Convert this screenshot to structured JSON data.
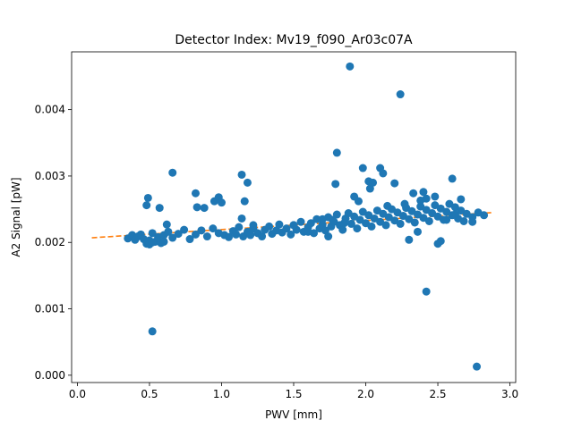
{
  "chart_data": {
    "type": "scatter",
    "title": "Detector Index: Mv19_f090_Ar03c07A",
    "xlabel": "PWV [mm]",
    "ylabel": "A2 Signal [pW]",
    "xlim": [
      -0.04,
      3.04
    ],
    "ylim": [
      -0.00011,
      0.00487
    ],
    "xticks": [
      0.0,
      0.5,
      1.0,
      1.5,
      2.0,
      2.5,
      3.0
    ],
    "xtick_labels": [
      "0.0",
      "0.5",
      "1.0",
      "1.5",
      "2.0",
      "2.5",
      "3.0"
    ],
    "yticks": [
      0.0,
      0.001,
      0.002,
      0.003,
      0.004
    ],
    "ytick_labels": [
      "0.000",
      "0.001",
      "0.002",
      "0.003",
      "0.004"
    ],
    "grid": false,
    "series": [
      {
        "name": "data",
        "kind": "scatter",
        "color": "#1f77b4",
        "points": [
          [
            0.35,
            0.00206
          ],
          [
            0.38,
            0.00211
          ],
          [
            0.4,
            0.00204
          ],
          [
            0.42,
            0.00209
          ],
          [
            0.44,
            0.00212
          ],
          [
            0.46,
            0.00205
          ],
          [
            0.48,
            0.00198
          ],
          [
            0.5,
            0.00203
          ],
          [
            0.52,
            0.00214
          ],
          [
            0.54,
            0.00201
          ],
          [
            0.56,
            0.00208
          ],
          [
            0.58,
            0.00199
          ],
          [
            0.6,
            0.00211
          ],
          [
            0.63,
            0.00216
          ],
          [
            0.66,
            0.00207
          ],
          [
            0.7,
            0.00213
          ],
          [
            0.74,
            0.00219
          ],
          [
            0.78,
            0.00205
          ],
          [
            0.82,
            0.00212
          ],
          [
            0.86,
            0.00218
          ],
          [
            0.9,
            0.00209
          ],
          [
            0.94,
            0.00221
          ],
          [
            0.98,
            0.00214
          ],
          [
            1.02,
            0.00211
          ],
          [
            1.05,
            0.00208
          ],
          [
            1.08,
            0.00217
          ],
          [
            1.1,
            0.00212
          ],
          [
            1.12,
            0.00223
          ],
          [
            1.15,
            0.00209
          ],
          [
            1.18,
            0.00216
          ],
          [
            1.2,
            0.00211
          ],
          [
            1.22,
            0.00221
          ],
          [
            1.25,
            0.00214
          ],
          [
            1.28,
            0.00209
          ],
          [
            1.3,
            0.00219
          ],
          [
            1.33,
            0.00224
          ],
          [
            1.35,
            0.00213
          ],
          [
            1.38,
            0.00218
          ],
          [
            1.4,
            0.00227
          ],
          [
            1.42,
            0.00215
          ],
          [
            1.45,
            0.00221
          ],
          [
            1.48,
            0.00212
          ],
          [
            1.5,
            0.00226
          ],
          [
            1.52,
            0.00219
          ],
          [
            1.55,
            0.00231
          ],
          [
            1.57,
            0.00216
          ],
          [
            1.6,
            0.00223
          ],
          [
            1.62,
            0.00229
          ],
          [
            1.64,
            0.00214
          ],
          [
            1.66,
            0.00235
          ],
          [
            1.68,
            0.00221
          ],
          [
            1.7,
            0.00227
          ],
          [
            1.72,
            0.00218
          ],
          [
            1.74,
            0.00238
          ],
          [
            1.76,
            0.00224
          ],
          [
            1.78,
            0.00231
          ],
          [
            1.8,
            0.00242
          ],
          [
            1.82,
            0.00226
          ],
          [
            1.84,
            0.00219
          ],
          [
            1.86,
            0.00236
          ],
          [
            1.88,
            0.00244
          ],
          [
            1.9,
            0.00228
          ],
          [
            1.92,
            0.00239
          ],
          [
            1.94,
            0.00221
          ],
          [
            1.96,
            0.00234
          ],
          [
            1.98,
            0.00246
          ],
          [
            2.0,
            0.00229
          ],
          [
            2.02,
            0.00241
          ],
          [
            2.04,
            0.00224
          ],
          [
            2.06,
            0.00236
          ],
          [
            2.08,
            0.00248
          ],
          [
            2.1,
            0.00231
          ],
          [
            2.12,
            0.00243
          ],
          [
            2.14,
            0.00226
          ],
          [
            2.16,
            0.00238
          ],
          [
            2.18,
            0.0025
          ],
          [
            2.2,
            0.00233
          ],
          [
            2.22,
            0.00245
          ],
          [
            2.24,
            0.00228
          ],
          [
            2.26,
            0.0024
          ],
          [
            2.28,
            0.00252
          ],
          [
            2.3,
            0.00235
          ],
          [
            2.32,
            0.00247
          ],
          [
            2.34,
            0.0023
          ],
          [
            2.36,
            0.00242
          ],
          [
            2.38,
            0.00254
          ],
          [
            2.4,
            0.00237
          ],
          [
            2.42,
            0.00249
          ],
          [
            2.44,
            0.00232
          ],
          [
            2.46,
            0.00244
          ],
          [
            2.48,
            0.00256
          ],
          [
            2.5,
            0.00239
          ],
          [
            2.52,
            0.00251
          ],
          [
            2.54,
            0.00234
          ],
          [
            2.56,
            0.00246
          ],
          [
            2.58,
            0.00258
          ],
          [
            2.6,
            0.00241
          ],
          [
            2.62,
            0.00253
          ],
          [
            2.64,
            0.00236
          ],
          [
            2.66,
            0.00248
          ],
          [
            2.7,
            0.00243
          ],
          [
            2.74,
            0.00238
          ],
          [
            2.78,
            0.00245
          ],
          [
            2.82,
            0.00241
          ],
          [
            0.48,
            0.00256
          ],
          [
            0.49,
            0.00267
          ],
          [
            0.5,
            0.00197
          ],
          [
            0.52,
            0.002
          ],
          [
            0.57,
            0.00252
          ],
          [
            0.6,
            0.00201
          ],
          [
            0.62,
            0.00227
          ],
          [
            0.66,
            0.00305
          ],
          [
            0.82,
            0.00274
          ],
          [
            0.83,
            0.00253
          ],
          [
            0.88,
            0.00252
          ],
          [
            0.95,
            0.00262
          ],
          [
            0.98,
            0.00268
          ],
          [
            1.0,
            0.0026
          ],
          [
            1.14,
            0.00302
          ],
          [
            1.18,
            0.0029
          ],
          [
            1.16,
            0.00262
          ],
          [
            1.14,
            0.00236
          ],
          [
            1.22,
            0.00226
          ],
          [
            1.5,
            0.00226
          ],
          [
            1.6,
            0.00216
          ],
          [
            1.7,
            0.00235
          ],
          [
            1.74,
            0.00209
          ],
          [
            1.77,
            0.00234
          ],
          [
            1.79,
            0.00288
          ],
          [
            1.8,
            0.00335
          ],
          [
            1.85,
            0.00229
          ],
          [
            1.89,
            0.00465
          ],
          [
            1.92,
            0.00269
          ],
          [
            1.95,
            0.00262
          ],
          [
            1.98,
            0.00312
          ],
          [
            2.02,
            0.00292
          ],
          [
            2.03,
            0.00281
          ],
          [
            2.05,
            0.0029
          ],
          [
            2.1,
            0.00312
          ],
          [
            2.12,
            0.00304
          ],
          [
            2.15,
            0.00255
          ],
          [
            2.2,
            0.00289
          ],
          [
            2.24,
            0.00423
          ],
          [
            2.27,
            0.00258
          ],
          [
            2.3,
            0.00204
          ],
          [
            2.33,
            0.00274
          ],
          [
            2.36,
            0.00216
          ],
          [
            2.38,
            0.00263
          ],
          [
            2.4,
            0.00276
          ],
          [
            2.42,
            0.00266
          ],
          [
            2.48,
            0.00269
          ],
          [
            2.5,
            0.00198
          ],
          [
            2.52,
            0.00202
          ],
          [
            2.56,
            0.00234
          ],
          [
            2.6,
            0.00296
          ],
          [
            2.62,
            0.00242
          ],
          [
            2.66,
            0.00265
          ],
          [
            2.68,
            0.00232
          ],
          [
            2.74,
            0.00231
          ],
          [
            0.52,
            0.00066
          ],
          [
            2.42,
            0.00126
          ],
          [
            2.77,
            0.00013
          ]
        ]
      },
      {
        "name": "fit",
        "kind": "line",
        "style": "dashed",
        "color": "#ff7f0e",
        "x": [
          0.1,
          2.88
        ],
        "y": [
          0.00207,
          0.00245
        ]
      }
    ]
  }
}
